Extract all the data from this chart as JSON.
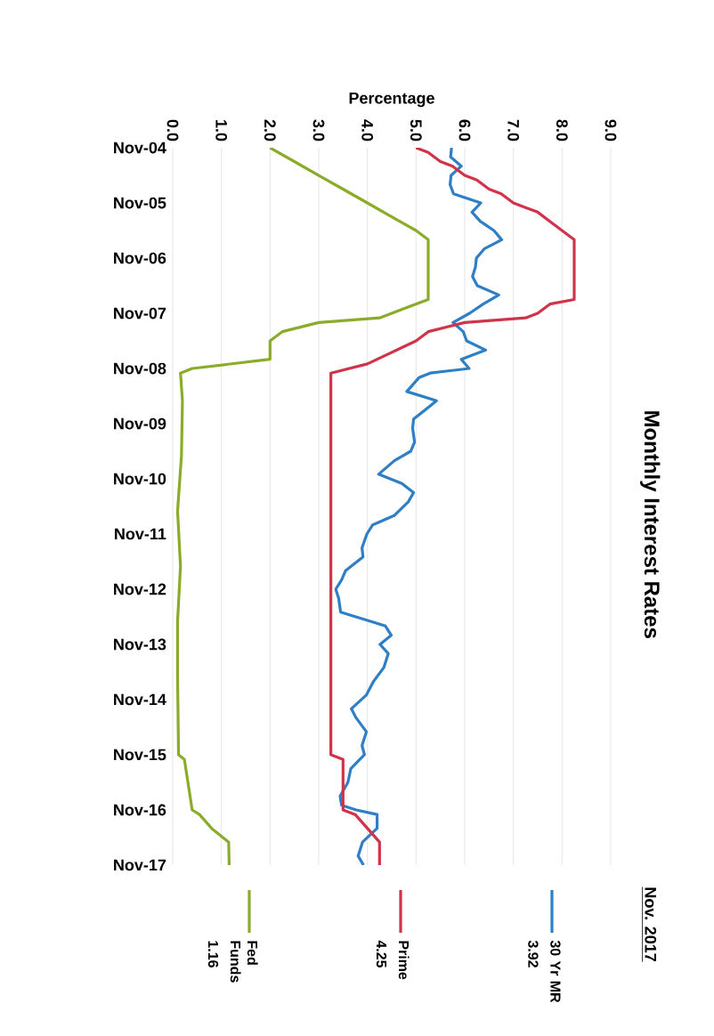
{
  "chart_data": {
    "type": "line",
    "orientation": "horizontal",
    "title": "Monthly Interest Rates",
    "xlabel": "Percentage",
    "legend_title": "Nov. 2017",
    "ylim": [
      "2017-11",
      "2004-11"
    ],
    "yticks": [
      {
        "value": "2004-11",
        "label": "Nov-04"
      },
      {
        "value": "2005-11",
        "label": "Nov-05"
      },
      {
        "value": "2006-11",
        "label": "Nov-06"
      },
      {
        "value": "2007-11",
        "label": "Nov-07"
      },
      {
        "value": "2008-11",
        "label": "Nov-08"
      },
      {
        "value": "2009-11",
        "label": "Nov-09"
      },
      {
        "value": "2010-11",
        "label": "Nov-10"
      },
      {
        "value": "2011-11",
        "label": "Nov-11"
      },
      {
        "value": "2012-11",
        "label": "Nov-12"
      },
      {
        "value": "2013-11",
        "label": "Nov-13"
      },
      {
        "value": "2014-11",
        "label": "Nov-14"
      },
      {
        "value": "2015-11",
        "label": "Nov-15"
      },
      {
        "value": "2016-11",
        "label": "Nov-16"
      },
      {
        "value": "2017-11",
        "label": "Nov-17"
      }
    ],
    "xlim": [
      0,
      9
    ],
    "xticks": [
      {
        "value": 0,
        "label": "0.0"
      },
      {
        "value": 1,
        "label": "1.0"
      },
      {
        "value": 2,
        "label": "2.0"
      },
      {
        "value": 3,
        "label": "3.0"
      },
      {
        "value": 4,
        "label": "4.0"
      },
      {
        "value": 5,
        "label": "5.0"
      },
      {
        "value": 6,
        "label": "6.0"
      },
      {
        "value": 7,
        "label": "7.0"
      },
      {
        "value": 8,
        "label": "8.0"
      },
      {
        "value": 9,
        "label": "9.0"
      }
    ],
    "grid": "x",
    "legend": "bottom",
    "marker": "none",
    "line_style": "solid",
    "annotations": [
      "3.92",
      "4.25",
      "1.16"
    ],
    "series": [
      {
        "name": "30 Yr MR",
        "color": "#2e7fc6",
        "x": [
          "2004-11",
          "2005-01",
          "2005-03",
          "2005-05",
          "2005-07",
          "2005-09",
          "2005-11",
          "2006-01",
          "2006-03",
          "2006-05",
          "2006-07",
          "2006-09",
          "2006-11",
          "2007-01",
          "2007-03",
          "2007-05",
          "2007-07",
          "2007-09",
          "2007-11",
          "2008-01",
          "2008-03",
          "2008-05",
          "2008-07",
          "2008-09",
          "2008-11",
          "2008-12",
          "2009-01",
          "2009-04",
          "2009-06",
          "2009-08",
          "2009-10",
          "2009-12",
          "2010-03",
          "2010-05",
          "2010-07",
          "2010-10",
          "2010-12",
          "2011-02",
          "2011-04",
          "2011-07",
          "2011-09",
          "2011-11",
          "2012-02",
          "2012-04",
          "2012-07",
          "2012-09",
          "2012-11",
          "2013-01",
          "2013-04",
          "2013-07",
          "2013-09",
          "2013-11",
          "2014-01",
          "2014-04",
          "2014-07",
          "2014-10",
          "2015-01",
          "2015-03",
          "2015-06",
          "2015-09",
          "2015-11",
          "2016-02",
          "2016-05",
          "2016-08",
          "2016-10",
          "2016-11",
          "2016-12",
          "2017-03",
          "2017-06",
          "2017-09",
          "2017-11"
        ],
        "values": [
          5.73,
          5.71,
          5.93,
          5.72,
          5.7,
          5.77,
          6.33,
          6.15,
          6.32,
          6.6,
          6.76,
          6.4,
          6.24,
          6.22,
          6.16,
          6.26,
          6.7,
          6.38,
          6.1,
          5.76,
          5.97,
          6.04,
          6.43,
          5.93,
          6.09,
          5.29,
          5.06,
          4.81,
          5.42,
          5.19,
          4.95,
          4.93,
          4.97,
          4.89,
          4.56,
          4.23,
          4.71,
          4.95,
          4.84,
          4.55,
          4.11,
          3.99,
          3.89,
          3.91,
          3.55,
          3.47,
          3.35,
          3.41,
          3.45,
          4.37,
          4.49,
          4.26,
          4.43,
          4.34,
          4.13,
          3.98,
          3.67,
          3.77,
          3.98,
          3.89,
          3.94,
          3.66,
          3.6,
          3.44,
          3.47,
          3.77,
          4.2,
          4.2,
          3.9,
          3.81,
          3.92
        ]
      },
      {
        "name": "Prime",
        "color": "#d0344a",
        "x": [
          "2004-11",
          "2004-12",
          "2005-02",
          "2005-03",
          "2005-05",
          "2005-06",
          "2005-08",
          "2005-09",
          "2005-11",
          "2005-12",
          "2006-01",
          "2006-03",
          "2006-05",
          "2006-07",
          "2007-08",
          "2007-09",
          "2007-11",
          "2007-12",
          "2008-01",
          "2008-03",
          "2008-05",
          "2008-10",
          "2008-12",
          "2015-11",
          "2015-12",
          "2016-11",
          "2016-12",
          "2017-03",
          "2017-06",
          "2017-11"
        ],
        "values": [
          5.0,
          5.25,
          5.5,
          5.75,
          6.0,
          6.25,
          6.5,
          6.75,
          7.0,
          7.25,
          7.5,
          7.75,
          8.0,
          8.25,
          8.25,
          7.75,
          7.5,
          7.25,
          6.0,
          5.25,
          5.0,
          4.0,
          3.25,
          3.25,
          3.5,
          3.5,
          3.75,
          4.0,
          4.25,
          4.25
        ]
      },
      {
        "name": "Fed Funds",
        "color": "#8bab2a",
        "x": [
          "2004-11",
          "2005-02",
          "2005-05",
          "2005-08",
          "2005-11",
          "2006-02",
          "2006-05",
          "2006-07",
          "2007-08",
          "2007-10",
          "2007-12",
          "2008-01",
          "2008-03",
          "2008-05",
          "2008-09",
          "2008-11",
          "2008-12",
          "2009-06",
          "2010-06",
          "2011-06",
          "2012-06",
          "2013-06",
          "2014-06",
          "2015-11",
          "2015-12",
          "2016-11",
          "2016-12",
          "2017-03",
          "2017-06",
          "2017-11"
        ],
        "values": [
          2.0,
          2.5,
          3.0,
          3.5,
          4.0,
          4.5,
          5.0,
          5.25,
          5.25,
          4.75,
          4.25,
          3.0,
          2.25,
          2.0,
          2.0,
          0.4,
          0.16,
          0.2,
          0.18,
          0.1,
          0.16,
          0.1,
          0.1,
          0.12,
          0.24,
          0.4,
          0.55,
          0.8,
          1.15,
          1.16
        ]
      }
    ]
  }
}
